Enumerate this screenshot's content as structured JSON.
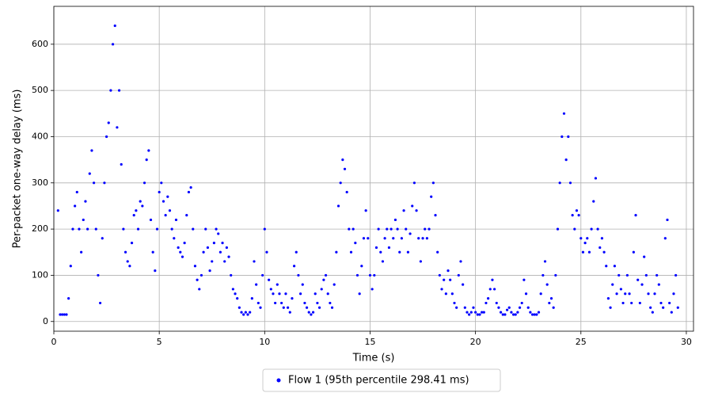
{
  "chart_data": {
    "type": "scatter",
    "xlabel": "Time (s)",
    "ylabel": "Per-packet one-way delay (ms)",
    "xlim": [
      0,
      30.34
    ],
    "ylim": [
      -21,
      682
    ],
    "xticks": [
      0,
      5,
      10,
      15,
      20,
      25,
      30
    ],
    "yticks": [
      0,
      100,
      200,
      300,
      400,
      500,
      600
    ],
    "grid": true,
    "legend": "lower center",
    "series": [
      {
        "name": "Flow 1 (95th percentile 298.41 ms)",
        "color": "#0000ff",
        "x": [
          0.2,
          0.3,
          0.4,
          0.5,
          0.6,
          0.7,
          0.8,
          0.9,
          1.0,
          1.1,
          1.2,
          1.3,
          1.4,
          1.5,
          1.6,
          1.7,
          1.8,
          1.9,
          2.0,
          2.1,
          2.2,
          2.3,
          2.4,
          2.5,
          2.6,
          2.7,
          2.8,
          2.9,
          3.0,
          3.1,
          3.2,
          3.3,
          3.4,
          3.5,
          3.6,
          3.7,
          3.8,
          3.9,
          4.0,
          4.1,
          4.2,
          4.3,
          4.4,
          4.5,
          4.6,
          4.7,
          4.8,
          4.9,
          5.0,
          5.1,
          5.2,
          5.3,
          5.4,
          5.5,
          5.6,
          5.7,
          5.8,
          5.9,
          6.0,
          6.1,
          6.2,
          6.3,
          6.4,
          6.5,
          6.6,
          6.7,
          6.8,
          6.9,
          7.0,
          7.1,
          7.2,
          7.3,
          7.4,
          7.5,
          7.6,
          7.7,
          7.8,
          7.9,
          8.0,
          8.1,
          8.2,
          8.3,
          8.4,
          8.5,
          8.6,
          8.7,
          8.8,
          8.9,
          9.0,
          9.1,
          9.2,
          9.3,
          9.4,
          9.5,
          9.6,
          9.7,
          9.8,
          9.9,
          10.0,
          10.1,
          10.2,
          10.3,
          10.4,
          10.5,
          10.6,
          10.7,
          10.8,
          10.9,
          11.0,
          11.1,
          11.2,
          11.3,
          11.4,
          11.5,
          11.6,
          11.7,
          11.8,
          11.9,
          12.0,
          12.1,
          12.2,
          12.3,
          12.4,
          12.5,
          12.6,
          12.7,
          12.8,
          12.9,
          13.0,
          13.1,
          13.2,
          13.3,
          13.4,
          13.5,
          13.6,
          13.7,
          13.8,
          13.9,
          14.0,
          14.1,
          14.2,
          14.3,
          14.4,
          14.5,
          14.6,
          14.7,
          14.8,
          14.9,
          15.0,
          15.1,
          15.2,
          15.3,
          15.4,
          15.5,
          15.6,
          15.7,
          15.8,
          15.9,
          16.0,
          16.1,
          16.2,
          16.3,
          16.4,
          16.5,
          16.6,
          16.7,
          16.8,
          16.9,
          17.0,
          17.1,
          17.2,
          17.3,
          17.4,
          17.5,
          17.6,
          17.7,
          17.8,
          17.9,
          18.0,
          18.1,
          18.2,
          18.3,
          18.4,
          18.5,
          18.6,
          18.7,
          18.8,
          18.9,
          19.0,
          19.1,
          19.2,
          19.3,
          19.4,
          19.5,
          19.6,
          19.7,
          19.8,
          19.9,
          20.0,
          20.1,
          20.2,
          20.3,
          20.4,
          20.5,
          20.6,
          20.7,
          20.8,
          20.9,
          21.0,
          21.1,
          21.2,
          21.3,
          21.4,
          21.5,
          21.6,
          21.7,
          21.8,
          21.9,
          22.0,
          22.1,
          22.2,
          22.3,
          22.4,
          22.5,
          22.6,
          22.7,
          22.8,
          22.9,
          23.0,
          23.1,
          23.2,
          23.3,
          23.4,
          23.5,
          23.6,
          23.7,
          23.8,
          23.9,
          24.0,
          24.1,
          24.2,
          24.3,
          24.4,
          24.5,
          24.6,
          24.7,
          24.8,
          24.9,
          25.0,
          25.1,
          25.2,
          25.3,
          25.4,
          25.5,
          25.6,
          25.7,
          25.8,
          25.9,
          26.0,
          26.1,
          26.2,
          26.3,
          26.4,
          26.5,
          26.6,
          26.7,
          26.8,
          26.9,
          27.0,
          27.1,
          27.2,
          27.3,
          27.4,
          27.5,
          27.6,
          27.7,
          27.8,
          27.9,
          28.0,
          28.1,
          28.2,
          28.3,
          28.4,
          28.5,
          28.6,
          28.7,
          28.8,
          28.9,
          29.0,
          29.1,
          29.2,
          29.3,
          29.4,
          29.5,
          29.6
        ],
        "values": [
          240,
          15,
          15,
          15,
          15,
          50,
          120,
          200,
          250,
          280,
          200,
          150,
          220,
          260,
          200,
          320,
          370,
          300,
          200,
          100,
          40,
          180,
          300,
          400,
          430,
          500,
          600,
          640,
          420,
          500,
          340,
          200,
          150,
          130,
          120,
          170,
          230,
          240,
          200,
          260,
          250,
          300,
          350,
          370,
          220,
          150,
          110,
          200,
          280,
          300,
          260,
          230,
          270,
          240,
          200,
          180,
          220,
          160,
          150,
          140,
          170,
          230,
          280,
          290,
          200,
          120,
          90,
          70,
          100,
          150,
          200,
          160,
          110,
          130,
          170,
          200,
          190,
          150,
          170,
          130,
          160,
          140,
          100,
          70,
          60,
          50,
          30,
          20,
          15,
          20,
          15,
          20,
          50,
          130,
          80,
          40,
          30,
          100,
          200,
          150,
          90,
          70,
          60,
          40,
          80,
          60,
          40,
          30,
          60,
          30,
          20,
          50,
          120,
          150,
          100,
          60,
          80,
          40,
          30,
          20,
          15,
          20,
          60,
          40,
          30,
          70,
          90,
          100,
          60,
          40,
          30,
          80,
          150,
          250,
          300,
          350,
          330,
          280,
          200,
          150,
          200,
          170,
          100,
          60,
          120,
          180,
          240,
          180,
          100,
          70,
          100,
          160,
          200,
          150,
          130,
          180,
          200,
          160,
          200,
          180,
          220,
          200,
          150,
          180,
          240,
          200,
          150,
          190,
          250,
          300,
          240,
          180,
          130,
          180,
          200,
          180,
          200,
          270,
          300,
          230,
          150,
          100,
          70,
          90,
          60,
          110,
          90,
          60,
          40,
          30,
          100,
          130,
          80,
          30,
          20,
          15,
          20,
          30,
          20,
          15,
          15,
          20,
          20,
          40,
          50,
          70,
          90,
          70,
          40,
          30,
          20,
          15,
          15,
          25,
          30,
          20,
          15,
          15,
          20,
          30,
          40,
          90,
          60,
          30,
          20,
          15,
          15,
          15,
          20,
          60,
          100,
          130,
          80,
          40,
          50,
          30,
          100,
          200,
          300,
          400,
          450,
          350,
          400,
          300,
          230,
          200,
          240,
          230,
          180,
          150,
          170,
          180,
          150,
          200,
          260,
          310,
          200,
          160,
          180,
          150,
          120,
          50,
          30,
          80,
          120,
          60,
          100,
          70,
          40,
          60,
          100,
          60,
          40,
          150,
          230,
          90,
          40,
          80,
          140,
          100,
          60,
          30,
          20,
          60,
          100,
          80,
          40,
          30,
          180,
          220,
          40,
          20,
          60,
          100,
          30
        ]
      }
    ]
  }
}
